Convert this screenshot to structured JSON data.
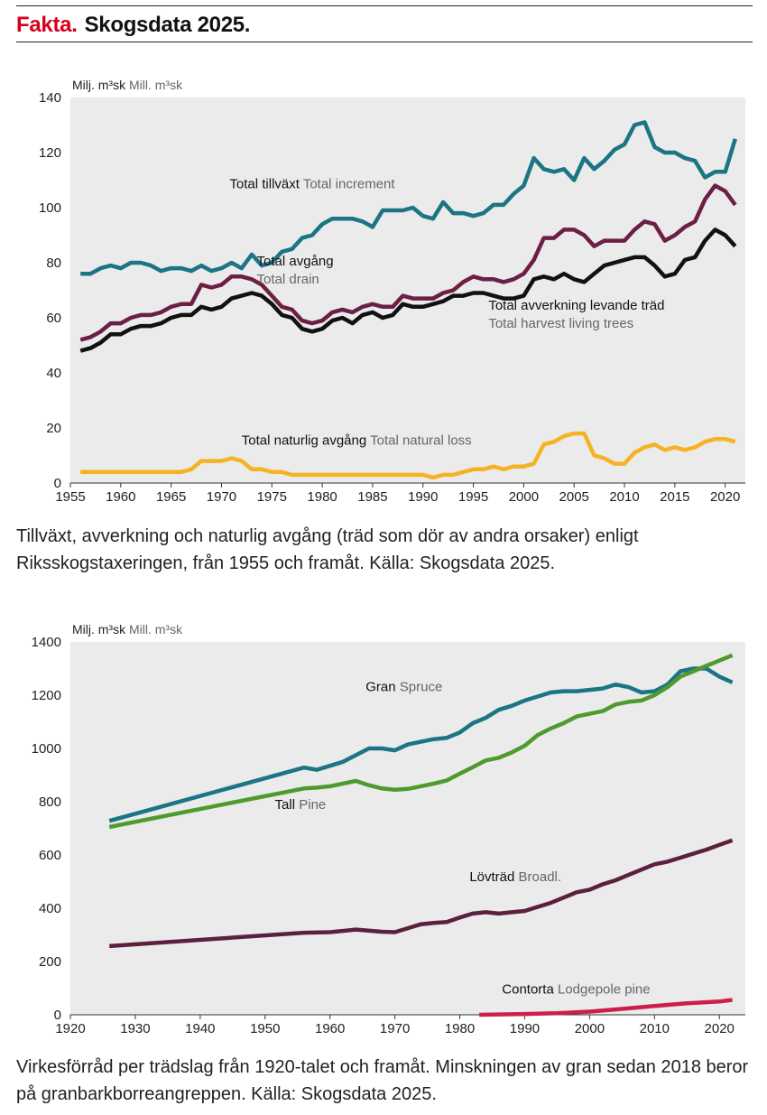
{
  "header": {
    "fakta": "Fakta.",
    "title": "Skogsdata 2025."
  },
  "charts": [
    {
      "caption": "Tillväxt, avverkning och naturlig avgång (träd som dör av andra orsaker) enligt Riksskogstaxeringen, från 1955 och framåt. Källa: Skogsdata 2025.",
      "chart_data": {
        "type": "line",
        "unit_sv": "Milj. m³sk",
        "unit_en": "Mill. m³sk",
        "xlim": [
          1955,
          2022
        ],
        "ylim": [
          0,
          140
        ],
        "xticks": [
          1955,
          1960,
          1965,
          1970,
          1975,
          1980,
          1985,
          1990,
          1995,
          2000,
          2005,
          2010,
          2015,
          2020
        ],
        "yticks": [
          0,
          20,
          40,
          60,
          80,
          100,
          120,
          140
        ],
        "grid": false,
        "x": [
          1956,
          1957,
          1958,
          1959,
          1960,
          1961,
          1962,
          1963,
          1964,
          1965,
          1966,
          1967,
          1968,
          1969,
          1970,
          1971,
          1972,
          1973,
          1974,
          1975,
          1976,
          1977,
          1978,
          1979,
          1980,
          1981,
          1982,
          1983,
          1984,
          1985,
          1986,
          1987,
          1988,
          1989,
          1990,
          1991,
          1992,
          1993,
          1994,
          1995,
          1996,
          1997,
          1998,
          1999,
          2000,
          2001,
          2002,
          2003,
          2004,
          2005,
          2006,
          2007,
          2008,
          2009,
          2010,
          2011,
          2012,
          2013,
          2014,
          2015,
          2016,
          2017,
          2018,
          2019,
          2020,
          2021
        ],
        "series": [
          {
            "label_sv": "Total tillväxt",
            "label_en": "Total increment",
            "color": "#1b7584",
            "values": [
              76,
              76,
              78,
              79,
              78,
              80,
              80,
              79,
              77,
              78,
              78,
              77,
              79,
              77,
              78,
              80,
              78,
              83,
              79,
              80,
              84,
              85,
              89,
              90,
              94,
              96,
              96,
              96,
              95,
              93,
              99,
              99,
              99,
              100,
              97,
              96,
              102,
              98,
              98,
              97,
              98,
              101,
              101,
              105,
              108,
              118,
              114,
              113,
              114,
              110,
              118,
              114,
              117,
              121,
              123,
              130,
              131,
              122,
              120,
              120,
              118,
              117,
              111,
              113,
              113,
              125
            ],
            "label_pos": [
              1970.8,
              107,
              "start"
            ]
          },
          {
            "label_sv": "Total avgång",
            "label_en": "Total drain",
            "color": "#6b1f44",
            "values": [
              52,
              53,
              55,
              58,
              58,
              60,
              61,
              61,
              62,
              64,
              65,
              65,
              72,
              71,
              72,
              75,
              75,
              74,
              72,
              68,
              64,
              63,
              59,
              58,
              59,
              62,
              63,
              62,
              64,
              65,
              64,
              64,
              68,
              67,
              67,
              67,
              69,
              70,
              73,
              75,
              74,
              74,
              73,
              74,
              76,
              81,
              89,
              89,
              92,
              92,
              90,
              86,
              88,
              88,
              88,
              92,
              95,
              94,
              88,
              90,
              93,
              95,
              103,
              108,
              106,
              101
            ],
            "label_pos": [
              1973.5,
              79,
              "start"
            ]
          },
          {
            "label_sv": "Total avverkning levande träd",
            "label_en": "Total harvest living trees",
            "color": "#111111",
            "values": [
              48,
              49,
              51,
              54,
              54,
              56,
              57,
              57,
              58,
              60,
              61,
              61,
              64,
              63,
              64,
              67,
              68,
              69,
              68,
              65,
              61,
              60,
              56,
              55,
              56,
              59,
              60,
              58,
              61,
              62,
              60,
              61,
              65,
              64,
              64,
              65,
              66,
              68,
              68,
              69,
              69,
              68,
              67,
              67,
              68,
              74,
              75,
              74,
              76,
              74,
              73,
              76,
              79,
              80,
              81,
              82,
              82,
              79,
              75,
              76,
              81,
              82,
              88,
              92,
              90,
              86
            ],
            "label_pos": [
              1996.5,
              63,
              "start"
            ]
          },
          {
            "label_sv": "Total naturlig avgång",
            "label_en": "Total natural loss",
            "color": "#f5b324",
            "values": [
              4,
              4,
              4,
              4,
              4,
              4,
              4,
              4,
              4,
              4,
              4,
              5,
              8,
              8,
              8,
              9,
              8,
              5,
              5,
              4,
              4,
              3,
              3,
              3,
              3,
              3,
              3,
              3,
              3,
              3,
              3,
              3,
              3,
              3,
              3,
              2,
              3,
              3,
              4,
              5,
              5,
              6,
              5,
              6,
              6,
              7,
              14,
              15,
              17,
              18,
              18,
              10,
              9,
              7,
              7,
              11,
              13,
              14,
              12,
              13,
              12,
              13,
              15,
              16,
              16,
              15
            ],
            "label_pos": [
              1972.0,
              14,
              "start"
            ]
          }
        ]
      }
    },
    {
      "caption": "Virkesförråd per trädslag från 1920-talet och framåt. Minskningen av gran sedan 2018 beror på granbarkborreangreppen. Källa: Skogsdata 2025.",
      "chart_data": {
        "type": "line",
        "unit_sv": "Milj. m³sk",
        "unit_en": "Mill. m³sk",
        "xlim": [
          1920,
          2024
        ],
        "ylim": [
          0,
          1400
        ],
        "xticks": [
          1920,
          1930,
          1940,
          1950,
          1960,
          1970,
          1980,
          1990,
          2000,
          2010,
          2020
        ],
        "yticks": [
          0,
          200,
          400,
          600,
          800,
          1000,
          1200,
          1400
        ],
        "grid": false,
        "series": [
          {
            "label_sv": "Gran",
            "label_en": "Spruce",
            "color": "#1b7584",
            "x": [
              1926,
              1956,
              1958,
              1960,
              1962,
              1964,
              1966,
              1968,
              1970,
              1972,
              1974,
              1976,
              1978,
              1980,
              1982,
              1984,
              1986,
              1988,
              1990,
              1992,
              1994,
              1996,
              1998,
              2000,
              2002,
              2004,
              2006,
              2008,
              2010,
              2012,
              2014,
              2016,
              2018,
              2020,
              2022
            ],
            "values": [
              728,
              928,
              920,
              935,
              950,
              975,
              1000,
              1000,
              993,
              1015,
              1025,
              1035,
              1040,
              1060,
              1095,
              1115,
              1145,
              1160,
              1180,
              1195,
              1210,
              1215,
              1215,
              1220,
              1225,
              1240,
              1230,
              1210,
              1215,
              1240,
              1290,
              1300,
              1300,
              1270,
              1248
            ],
            "label_pos": [
              1965.5,
              1215,
              "start"
            ]
          },
          {
            "label_sv": "Tall",
            "label_en": "Pine",
            "color": "#4f9a2d",
            "x": [
              1926,
              1956,
              1958,
              1960,
              1962,
              1964,
              1966,
              1968,
              1970,
              1972,
              1974,
              1976,
              1978,
              1980,
              1982,
              1984,
              1986,
              1988,
              1990,
              1992,
              1994,
              1996,
              1998,
              2000,
              2002,
              2004,
              2006,
              2008,
              2010,
              2012,
              2014,
              2016,
              2018,
              2020,
              2022
            ],
            "values": [
              705,
              850,
              853,
              858,
              868,
              878,
              862,
              850,
              845,
              848,
              858,
              868,
              880,
              905,
              930,
              955,
              965,
              985,
              1010,
              1050,
              1075,
              1095,
              1120,
              1130,
              1140,
              1165,
              1175,
              1180,
              1200,
              1230,
              1270,
              1290,
              1310,
              1330,
              1350
            ],
            "label_pos": [
              1951.5,
              773,
              "start"
            ]
          },
          {
            "label_sv": "Lövträd",
            "label_en": "Broadl.",
            "color": "#5c1f3e",
            "x": [
              1926,
              1956,
              1960,
              1964,
              1968,
              1970,
              1972,
              1974,
              1976,
              1978,
              1980,
              1982,
              1984,
              1986,
              1988,
              1990,
              1992,
              1994,
              1996,
              1998,
              2000,
              2002,
              2004,
              2006,
              2008,
              2010,
              2012,
              2014,
              2016,
              2018,
              2020,
              2022
            ],
            "values": [
              258,
              308,
              310,
              320,
              312,
              310,
              325,
              340,
              345,
              348,
              365,
              380,
              385,
              380,
              385,
              390,
              405,
              420,
              440,
              460,
              470,
              490,
              505,
              525,
              545,
              565,
              575,
              590,
              605,
              620,
              638,
              655
            ],
            "label_pos": [
              1981.5,
              502,
              "start"
            ]
          },
          {
            "label_sv": "Contorta",
            "label_en": "Lodgepole pine",
            "color": "#cc1f4b",
            "x": [
              1983,
              1990,
              1995,
              2000,
              2005,
              2010,
              2015,
              2020,
              2022
            ],
            "values": [
              0,
              3,
              6,
              12,
              22,
              33,
              43,
              50,
              56
            ],
            "label_pos": [
              1986.5,
              80,
              "start"
            ]
          }
        ]
      }
    }
  ]
}
